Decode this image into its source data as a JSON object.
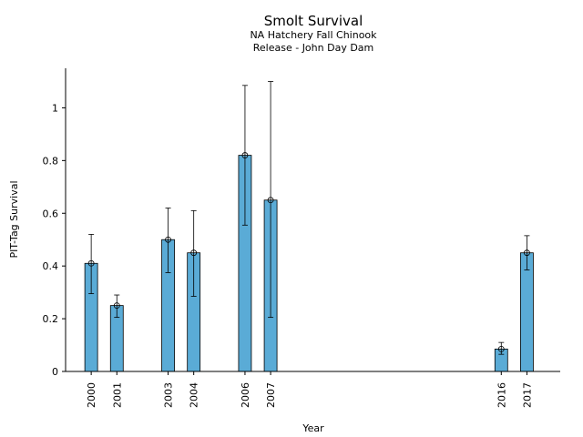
{
  "chart_data": {
    "type": "bar",
    "title": "Smolt Survival",
    "subtitle_lines": [
      "NA Hatchery Fall Chinook",
      "Release - John Day Dam"
    ],
    "xlabel": "Year",
    "ylabel": "PIT-Tag Survival",
    "x_range": [
      1999.0,
      2018.3
    ],
    "ylim": [
      0,
      1.15
    ],
    "yticks": [
      0,
      0.2,
      0.4,
      0.6,
      0.8,
      1
    ],
    "ytick_labels": [
      "0",
      "0.2",
      "0.4",
      "0.6",
      "0.8",
      "1"
    ],
    "bar_color": "#5aabd6",
    "points": [
      {
        "year": 2000,
        "label": "2000",
        "value": 0.41,
        "lower": 0.295,
        "upper": 0.52
      },
      {
        "year": 2001,
        "label": "2001",
        "value": 0.25,
        "lower": 0.205,
        "upper": 0.29
      },
      {
        "year": 2003,
        "label": "2003",
        "value": 0.5,
        "lower": 0.375,
        "upper": 0.62
      },
      {
        "year": 2004,
        "label": "2004",
        "value": 0.45,
        "lower": 0.285,
        "upper": 0.61
      },
      {
        "year": 2006,
        "label": "2006",
        "value": 0.82,
        "lower": 0.555,
        "upper": 1.085
      },
      {
        "year": 2007,
        "label": "2007",
        "value": 0.65,
        "lower": 0.205,
        "upper": 1.1
      },
      {
        "year": 2016,
        "label": "2016",
        "value": 0.085,
        "lower": 0.065,
        "upper": 0.11
      },
      {
        "year": 2017,
        "label": "2017",
        "value": 0.45,
        "lower": 0.385,
        "upper": 0.515
      }
    ],
    "grid": false,
    "legend": "none"
  }
}
